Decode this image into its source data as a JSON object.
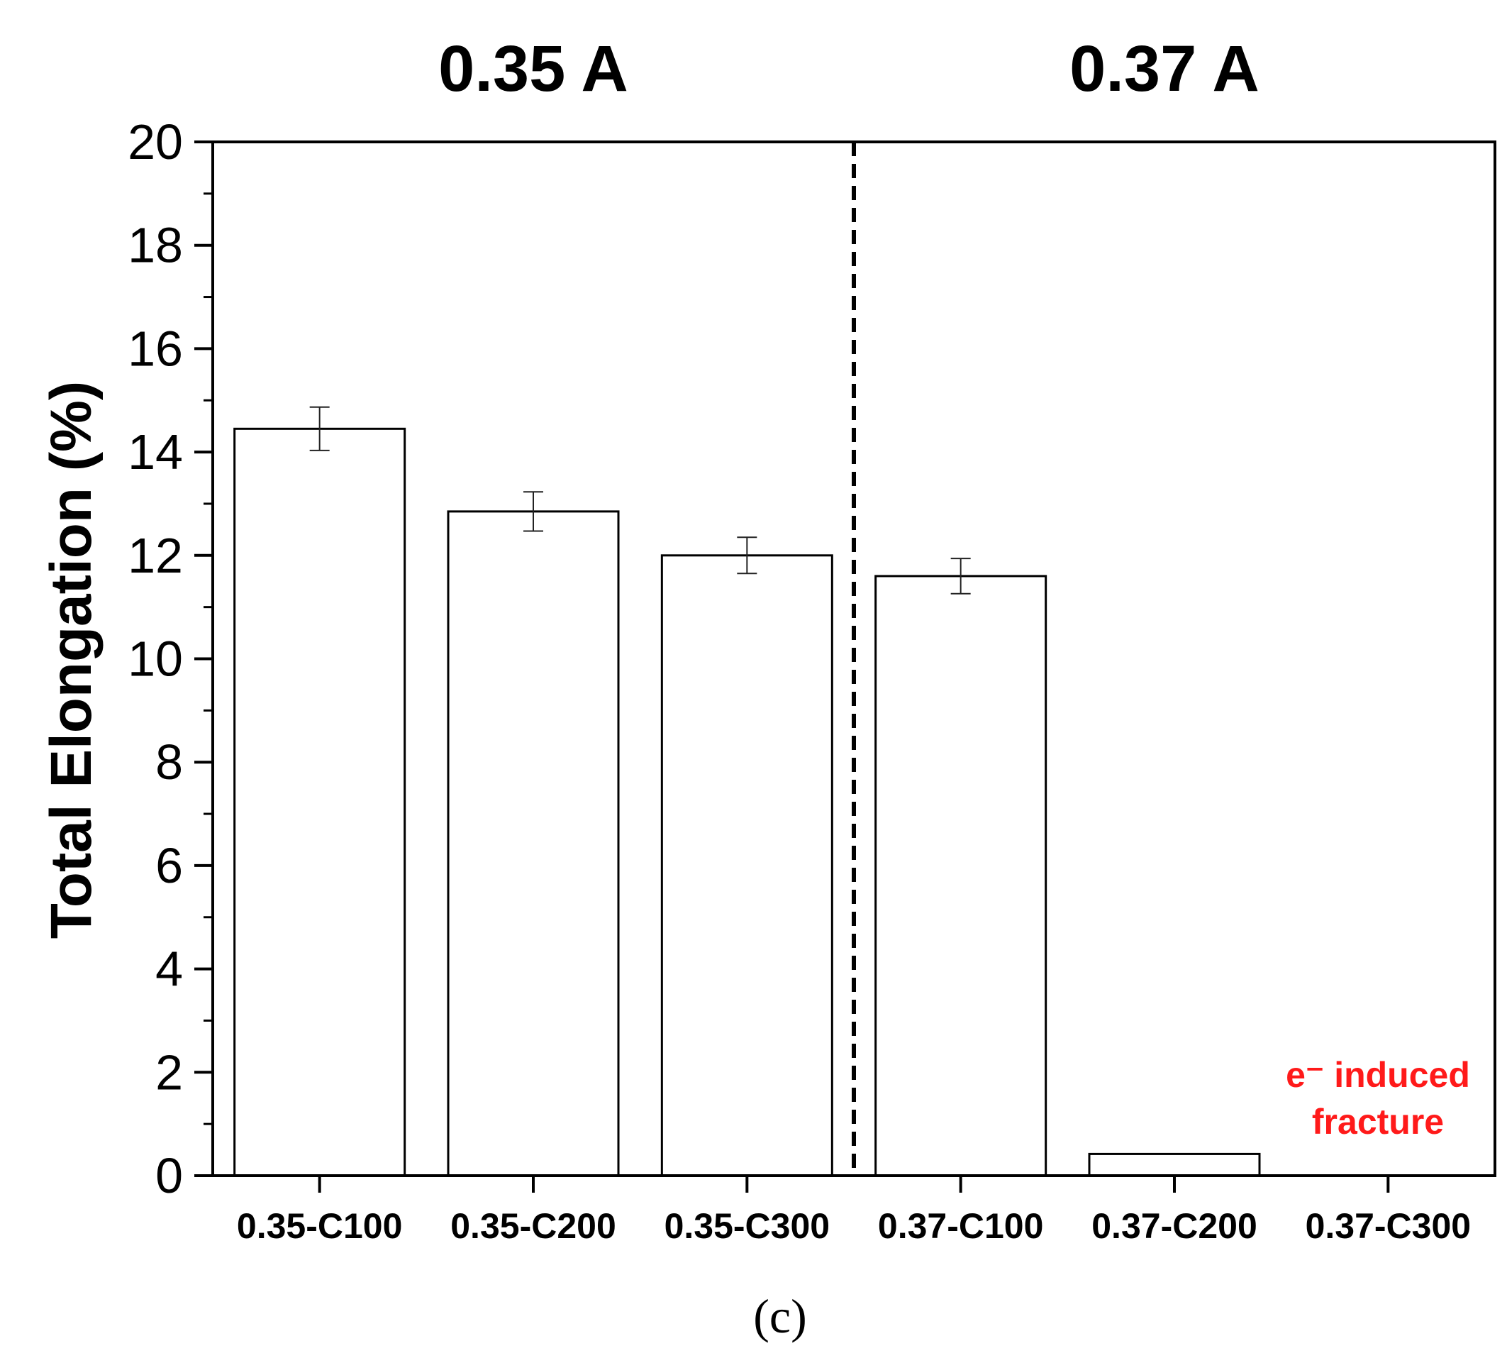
{
  "chart_data": {
    "type": "bar",
    "categories": [
      "0.35-C100",
      "0.35-C200",
      "0.35-C300",
      "0.37-C100",
      "0.37-C200",
      "0.37-C300"
    ],
    "values": [
      14.45,
      12.85,
      12.0,
      11.6,
      0.42,
      null
    ],
    "errors": [
      0.42,
      0.38,
      0.35,
      0.34,
      null,
      null
    ],
    "ylabel": "Total Elongation (%)",
    "xlabel": "",
    "ylim": [
      0,
      20
    ],
    "yticks": [
      0,
      2,
      4,
      6,
      8,
      10,
      12,
      14,
      16,
      18,
      20
    ],
    "grid": false,
    "groups": [
      {
        "label": "0.35 A",
        "categories": [
          "0.35-C100",
          "0.35-C200",
          "0.35-C300"
        ]
      },
      {
        "label": "0.37 A",
        "categories": [
          "0.37-C100",
          "0.37-C200",
          "0.37-C300"
        ]
      }
    ],
    "highlight_category": "0.37-C300",
    "annotation": {
      "line1": "e⁻ induced",
      "line2": "fracture",
      "category": "0.37-C300"
    },
    "panel_label": "(c)"
  },
  "colors": {
    "bar_fill": "#ffffff",
    "bar_stroke": "#000000",
    "highlight": "#ff1a1a",
    "axis": "#000000"
  }
}
